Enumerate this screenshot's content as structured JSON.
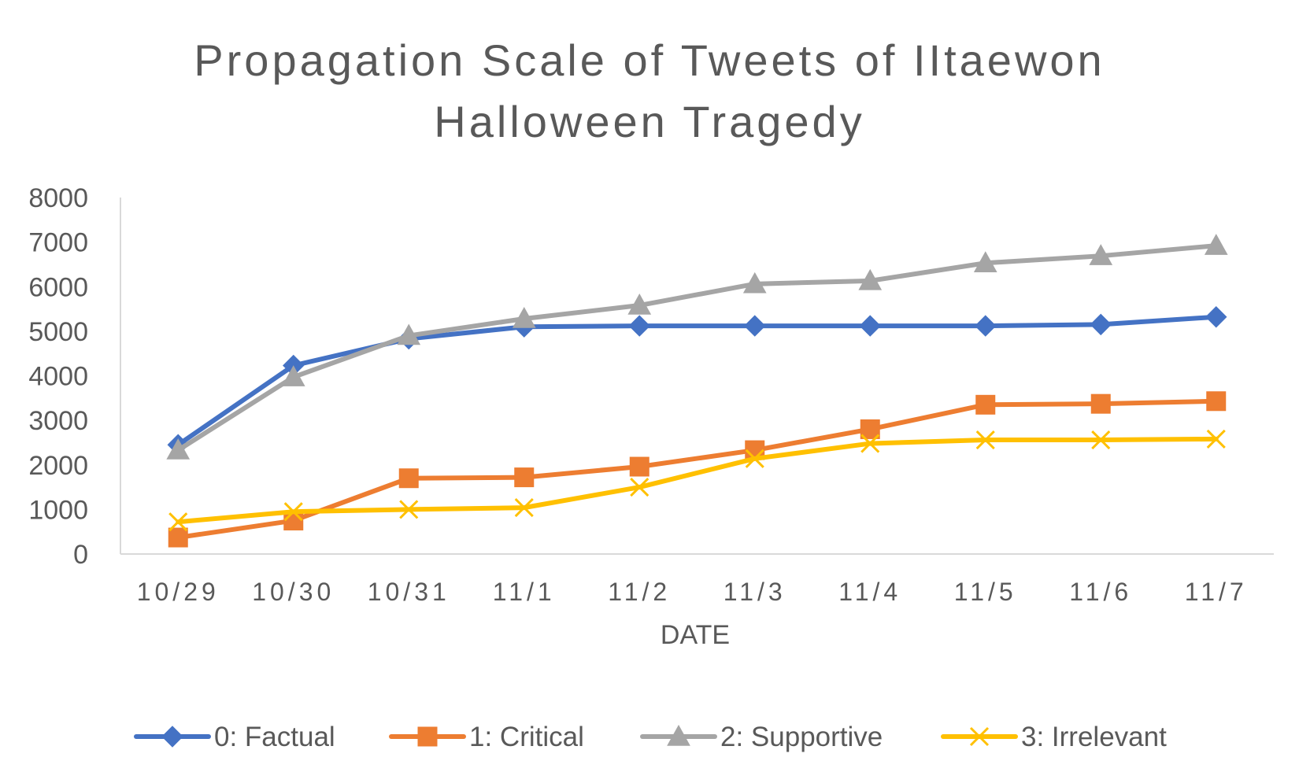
{
  "chart_data": {
    "type": "line",
    "title_line1": "Propagation Scale of Tweets of IItaewon",
    "title_line2": "Halloween Tragedy",
    "xlabel": "DATE",
    "ylabel": "",
    "ylim": [
      0,
      8000
    ],
    "yticks": [
      0,
      1000,
      2000,
      3000,
      4000,
      5000,
      6000,
      7000,
      8000
    ],
    "grid": false,
    "legend_position": "bottom",
    "categories": [
      "10/29",
      "10/30",
      "10/31",
      "11/1",
      "11/2",
      "11/3",
      "11/4",
      "11/5",
      "11/6",
      "11/7"
    ],
    "series": [
      {
        "name": "0: Factual",
        "color": "#4472C4",
        "marker": "diamond",
        "values": [
          2450,
          4230,
          4830,
          5100,
          5120,
          5120,
          5120,
          5120,
          5150,
          5320
        ]
      },
      {
        "name": "1: Critical",
        "color": "#ED7D31",
        "marker": "square",
        "values": [
          370,
          750,
          1700,
          1720,
          1960,
          2330,
          2800,
          3350,
          3370,
          3430
        ]
      },
      {
        "name": "2: Supportive",
        "color": "#A5A5A5",
        "marker": "triangle",
        "values": [
          2330,
          3970,
          4900,
          5280,
          5580,
          6060,
          6130,
          6530,
          6690,
          6920
        ]
      },
      {
        "name": "3: Irrelevant",
        "color": "#FFC000",
        "marker": "x",
        "values": [
          720,
          950,
          1000,
          1040,
          1500,
          2140,
          2480,
          2560,
          2560,
          2580
        ]
      }
    ]
  }
}
